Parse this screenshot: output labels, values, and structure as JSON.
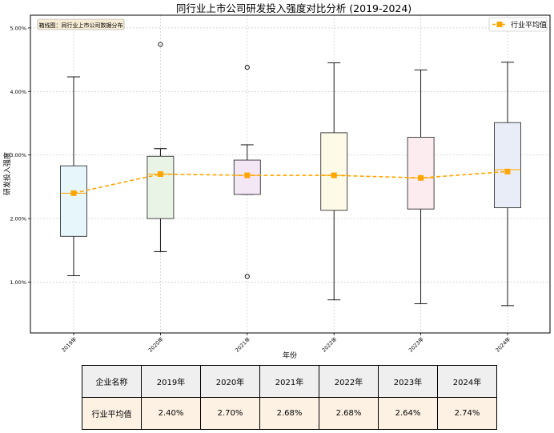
{
  "chart_data": {
    "type": "box",
    "title": "同行业上市公司研发投入强度对比分析 (2019-2024)",
    "xlabel": "年份",
    "ylabel": "研发投入强度",
    "annotation": "箱线图：同行业上市公司数据分布",
    "legend": {
      "label": "行业平均值",
      "placement": "top-right"
    },
    "categories": [
      "2019年",
      "2020年",
      "2021年",
      "2022年",
      "2023年",
      "2024年"
    ],
    "y_ticks": [
      "1.00%",
      "2.00%",
      "3.00%",
      "4.00%",
      "5.00%"
    ],
    "y_tick_values": [
      1.0,
      2.0,
      3.0,
      4.0,
      5.0
    ],
    "ylim": [
      0.2,
      5.2
    ],
    "boxes": [
      {
        "year": "2019年",
        "whisker_low": 1.1,
        "q1": 1.72,
        "median": 2.4,
        "q3": 2.83,
        "whisker_high": 4.23,
        "outliers": [],
        "fill": "#e6f6fb"
      },
      {
        "year": "2020年",
        "whisker_low": 1.48,
        "q1": 2.0,
        "median": 2.7,
        "q3": 2.98,
        "whisker_high": 3.1,
        "outliers": [
          4.74
        ],
        "fill": "#e9f4e7"
      },
      {
        "year": "2021年",
        "whisker_low": 2.38,
        "q1": 2.38,
        "median": 2.68,
        "q3": 2.92,
        "whisker_high": 3.16,
        "outliers": [
          4.38,
          1.09
        ],
        "fill": "#f3e7f6"
      },
      {
        "year": "2022年",
        "whisker_low": 0.72,
        "q1": 2.13,
        "median": 2.68,
        "q3": 3.35,
        "whisker_high": 4.45,
        "outliers": [],
        "fill": "#fdfae7"
      },
      {
        "year": "2023年",
        "whisker_low": 0.66,
        "q1": 2.15,
        "median": 2.64,
        "q3": 3.28,
        "whisker_high": 4.34,
        "outliers": [],
        "fill": "#fdecef"
      },
      {
        "year": "2024年",
        "whisker_low": 0.63,
        "q1": 2.17,
        "median": 2.77,
        "q3": 3.51,
        "whisker_high": 4.46,
        "outliers": [],
        "fill": "#e9edf7"
      }
    ],
    "series": [
      {
        "name": "行业平均值",
        "values": [
          2.4,
          2.7,
          2.68,
          2.68,
          2.64,
          2.74
        ],
        "color": "#ffa500"
      }
    ],
    "grid": true
  },
  "table": {
    "header_label": "企业名称",
    "row_label": "行业平均值",
    "columns": [
      "2019年",
      "2020年",
      "2021年",
      "2022年",
      "2023年",
      "2024年"
    ],
    "values": [
      "2.40%",
      "2.70%",
      "2.68%",
      "2.68%",
      "2.64%",
      "2.74%"
    ]
  },
  "colors": {
    "median": "#ffa500",
    "mean": "#ffa500",
    "axis": "#000000",
    "grid": "#c8c8c8"
  }
}
